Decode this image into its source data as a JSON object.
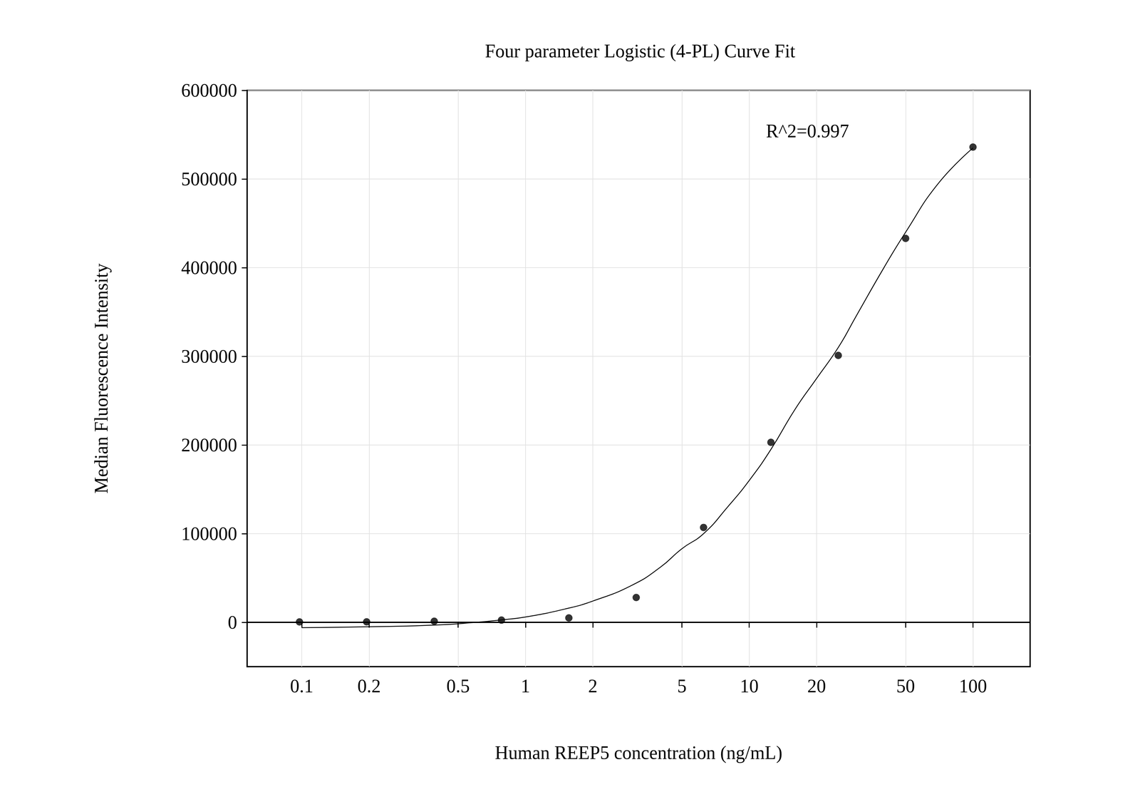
{
  "chart_data": {
    "type": "scatter",
    "title": "Four parameter Logistic (4-PL) Curve Fit",
    "x_label": "Human REEP5 concentration (ng/mL)",
    "y_label": "Median Fluorescence Intensity",
    "annotation": "R^2=0.997",
    "log": "x",
    "grid": true,
    "xlim": [
      0.057,
      180
    ],
    "xticks": [
      0.1,
      0.2,
      0.5,
      1,
      2,
      5,
      10,
      20,
      50,
      100
    ],
    "ylim": [
      -50000,
      600000
    ],
    "yticks": [
      0,
      100000,
      200000,
      300000,
      400000,
      500000,
      600000
    ],
    "series": [
      {
        "type": "scatter",
        "color": "#000000",
        "marker": "circle",
        "x": [
          0.0977,
          0.195,
          0.391,
          0.781,
          1.5625,
          3.125,
          6.25,
          12.5,
          25,
          50,
          100
        ],
        "values": [
          500,
          600,
          1200,
          2500,
          5000,
          28000,
          107000,
          203000,
          301000,
          433000,
          536000
        ]
      },
      {
        "type": "line",
        "color": "#000000",
        "line_style": "solid",
        "x": [
          0.1,
          0.2,
          0.4,
          0.6,
          0.8,
          1,
          1.5,
          2,
          3,
          4,
          5,
          6.25,
          8,
          10,
          12.5,
          16,
          20,
          25,
          30,
          40,
          50,
          70,
          100
        ],
        "values": [
          -6000,
          -5000,
          -3000,
          0,
          3000,
          6000,
          15000,
          24000,
          42000,
          62000,
          83000,
          100000,
          130000,
          160000,
          195000,
          240000,
          275000,
          310000,
          345000,
          400000,
          440000,
          495000,
          535000
        ]
      }
    ]
  }
}
